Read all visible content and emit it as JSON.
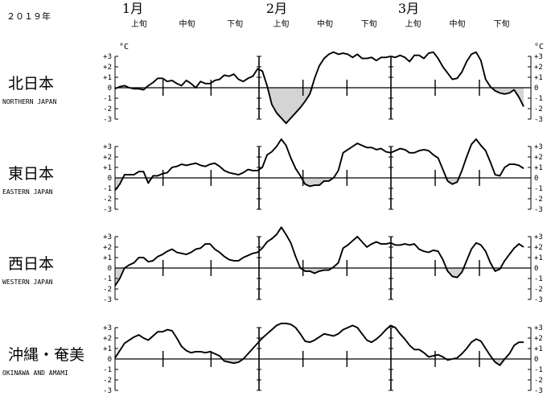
{
  "year_label": "２０１９年",
  "months": [
    "1月",
    "2月",
    "3月"
  ],
  "dekads": [
    "上旬",
    "中旬",
    "下旬",
    "上旬",
    "中旬",
    "下旬",
    "上旬",
    "中旬",
    "下旬"
  ],
  "unit": "°C",
  "colors": {
    "line": "#000000",
    "fill_negative": "#d4d4d4"
  },
  "chart_data": {
    "type": "line",
    "title": "",
    "xlabel": "",
    "ylabel": "°C",
    "x_start": "2019-01-01",
    "x_end": "2019-03-31",
    "ylim": [
      -3,
      3
    ],
    "yticks": [
      -3,
      -2,
      -1,
      0,
      1,
      2,
      3
    ],
    "ytick_labels": [
      "-3",
      "-2",
      "-1",
      "0",
      "+1",
      "+2",
      "+3"
    ],
    "negative_area_shaded": true,
    "regions": [
      {
        "name_ja": "北日本",
        "name_en": "NORTHERN JAPAN",
        "values": [
          -0.1,
          0.1,
          0.2,
          0.0,
          -0.1,
          -0.1,
          -0.2,
          0.2,
          0.5,
          0.9,
          0.9,
          0.6,
          0.7,
          0.4,
          0.2,
          0.7,
          0.4,
          0.0,
          0.6,
          0.4,
          0.4,
          0.7,
          0.8,
          1.2,
          1.1,
          1.3,
          0.8,
          0.6,
          0.9,
          1.1,
          1.8,
          1.6,
          0.2,
          -1.6,
          -2.4,
          -2.9,
          -3.4,
          -2.9,
          -2.4,
          -1.9,
          -1.3,
          -0.6,
          0.9,
          2.1,
          2.8,
          3.2,
          3.4,
          3.2,
          3.3,
          3.2,
          2.9,
          3.2,
          2.8,
          2.8,
          2.9,
          2.6,
          2.9,
          2.9,
          3.0,
          2.9,
          3.1,
          2.9,
          2.5,
          3.1,
          3.1,
          2.8,
          3.3,
          3.4,
          2.8,
          2.0,
          1.4,
          0.8,
          0.9,
          1.5,
          2.5,
          3.2,
          3.4,
          2.6,
          0.8,
          0.1,
          -0.3,
          -0.5,
          -0.6,
          -0.5,
          -0.2,
          -0.9,
          -1.8
        ]
      },
      {
        "name_ja": "東日本",
        "name_en": "EASTERN JAPAN",
        "values": [
          -1.2,
          -0.6,
          0.3,
          0.3,
          0.3,
          0.6,
          0.6,
          -0.5,
          0.2,
          0.2,
          0.4,
          0.5,
          1.0,
          1.1,
          1.3,
          1.2,
          1.3,
          1.4,
          1.2,
          1.1,
          1.3,
          1.4,
          1.1,
          0.7,
          0.5,
          0.4,
          0.3,
          0.5,
          0.8,
          0.7,
          0.7,
          1.0,
          2.2,
          2.5,
          3.0,
          3.7,
          3.1,
          1.9,
          0.9,
          0.2,
          -0.6,
          -0.8,
          -0.7,
          -0.7,
          -0.3,
          -0.3,
          0.0,
          0.7,
          2.4,
          2.7,
          3.0,
          3.3,
          3.1,
          2.9,
          2.9,
          2.7,
          2.8,
          2.5,
          2.4,
          2.6,
          2.8,
          2.7,
          2.4,
          2.4,
          2.6,
          2.7,
          2.6,
          2.2,
          1.9,
          0.8,
          -0.3,
          -0.6,
          -0.4,
          0.7,
          2.0,
          3.2,
          3.7,
          3.1,
          2.6,
          1.5,
          0.3,
          0.2,
          1.0,
          1.3,
          1.3,
          1.2,
          0.9
        ]
      },
      {
        "name_ja": "西日本",
        "name_en": "WESTERN JAPAN",
        "values": [
          -1.7,
          -1.0,
          0.0,
          0.3,
          0.5,
          1.0,
          1.0,
          0.6,
          0.7,
          1.1,
          1.3,
          1.6,
          1.8,
          1.5,
          1.4,
          1.3,
          1.5,
          1.8,
          1.9,
          2.3,
          2.3,
          1.8,
          1.5,
          1.1,
          0.8,
          0.7,
          0.7,
          1.0,
          1.2,
          1.4,
          1.5,
          1.9,
          2.5,
          2.8,
          3.2,
          3.9,
          3.2,
          2.4,
          1.1,
          0.0,
          -0.3,
          -0.3,
          -0.5,
          -0.3,
          -0.2,
          -0.2,
          0.1,
          0.5,
          1.9,
          2.2,
          2.6,
          3.0,
          2.5,
          2.0,
          2.3,
          2.5,
          2.3,
          2.3,
          2.4,
          2.2,
          2.2,
          2.3,
          2.2,
          2.3,
          1.8,
          1.6,
          1.5,
          1.7,
          1.6,
          0.8,
          -0.3,
          -0.8,
          -0.9,
          -0.4,
          0.7,
          1.8,
          2.4,
          2.2,
          1.6,
          0.5,
          -0.3,
          -0.1,
          0.7,
          1.3,
          1.9,
          2.3,
          2.0
        ]
      },
      {
        "name_ja": "沖縄・奄美",
        "name_en": "OKINAWA AND AMAMI",
        "values": [
          0.1,
          0.8,
          1.5,
          1.8,
          2.1,
          2.3,
          2.0,
          1.8,
          2.2,
          2.6,
          2.6,
          2.8,
          2.7,
          2.0,
          1.2,
          0.8,
          0.6,
          0.7,
          0.7,
          0.6,
          0.7,
          0.5,
          0.3,
          -0.2,
          -0.3,
          -0.4,
          -0.3,
          0.0,
          0.5,
          1.0,
          1.5,
          2.0,
          2.4,
          2.8,
          3.2,
          3.4,
          3.4,
          3.3,
          3.0,
          2.4,
          1.7,
          1.6,
          1.8,
          2.1,
          2.4,
          2.3,
          2.2,
          2.4,
          2.8,
          3.0,
          3.2,
          3.0,
          2.4,
          1.8,
          1.6,
          1.9,
          2.3,
          2.8,
          3.2,
          3.0,
          2.4,
          1.9,
          1.3,
          0.9,
          0.9,
          0.6,
          0.2,
          0.3,
          0.4,
          0.2,
          -0.1,
          0.0,
          0.1,
          0.5,
          1.0,
          1.6,
          1.9,
          1.7,
          1.0,
          0.3,
          -0.3,
          -0.6,
          0.0,
          0.5,
          1.3,
          1.6,
          1.6
        ]
      }
    ]
  }
}
